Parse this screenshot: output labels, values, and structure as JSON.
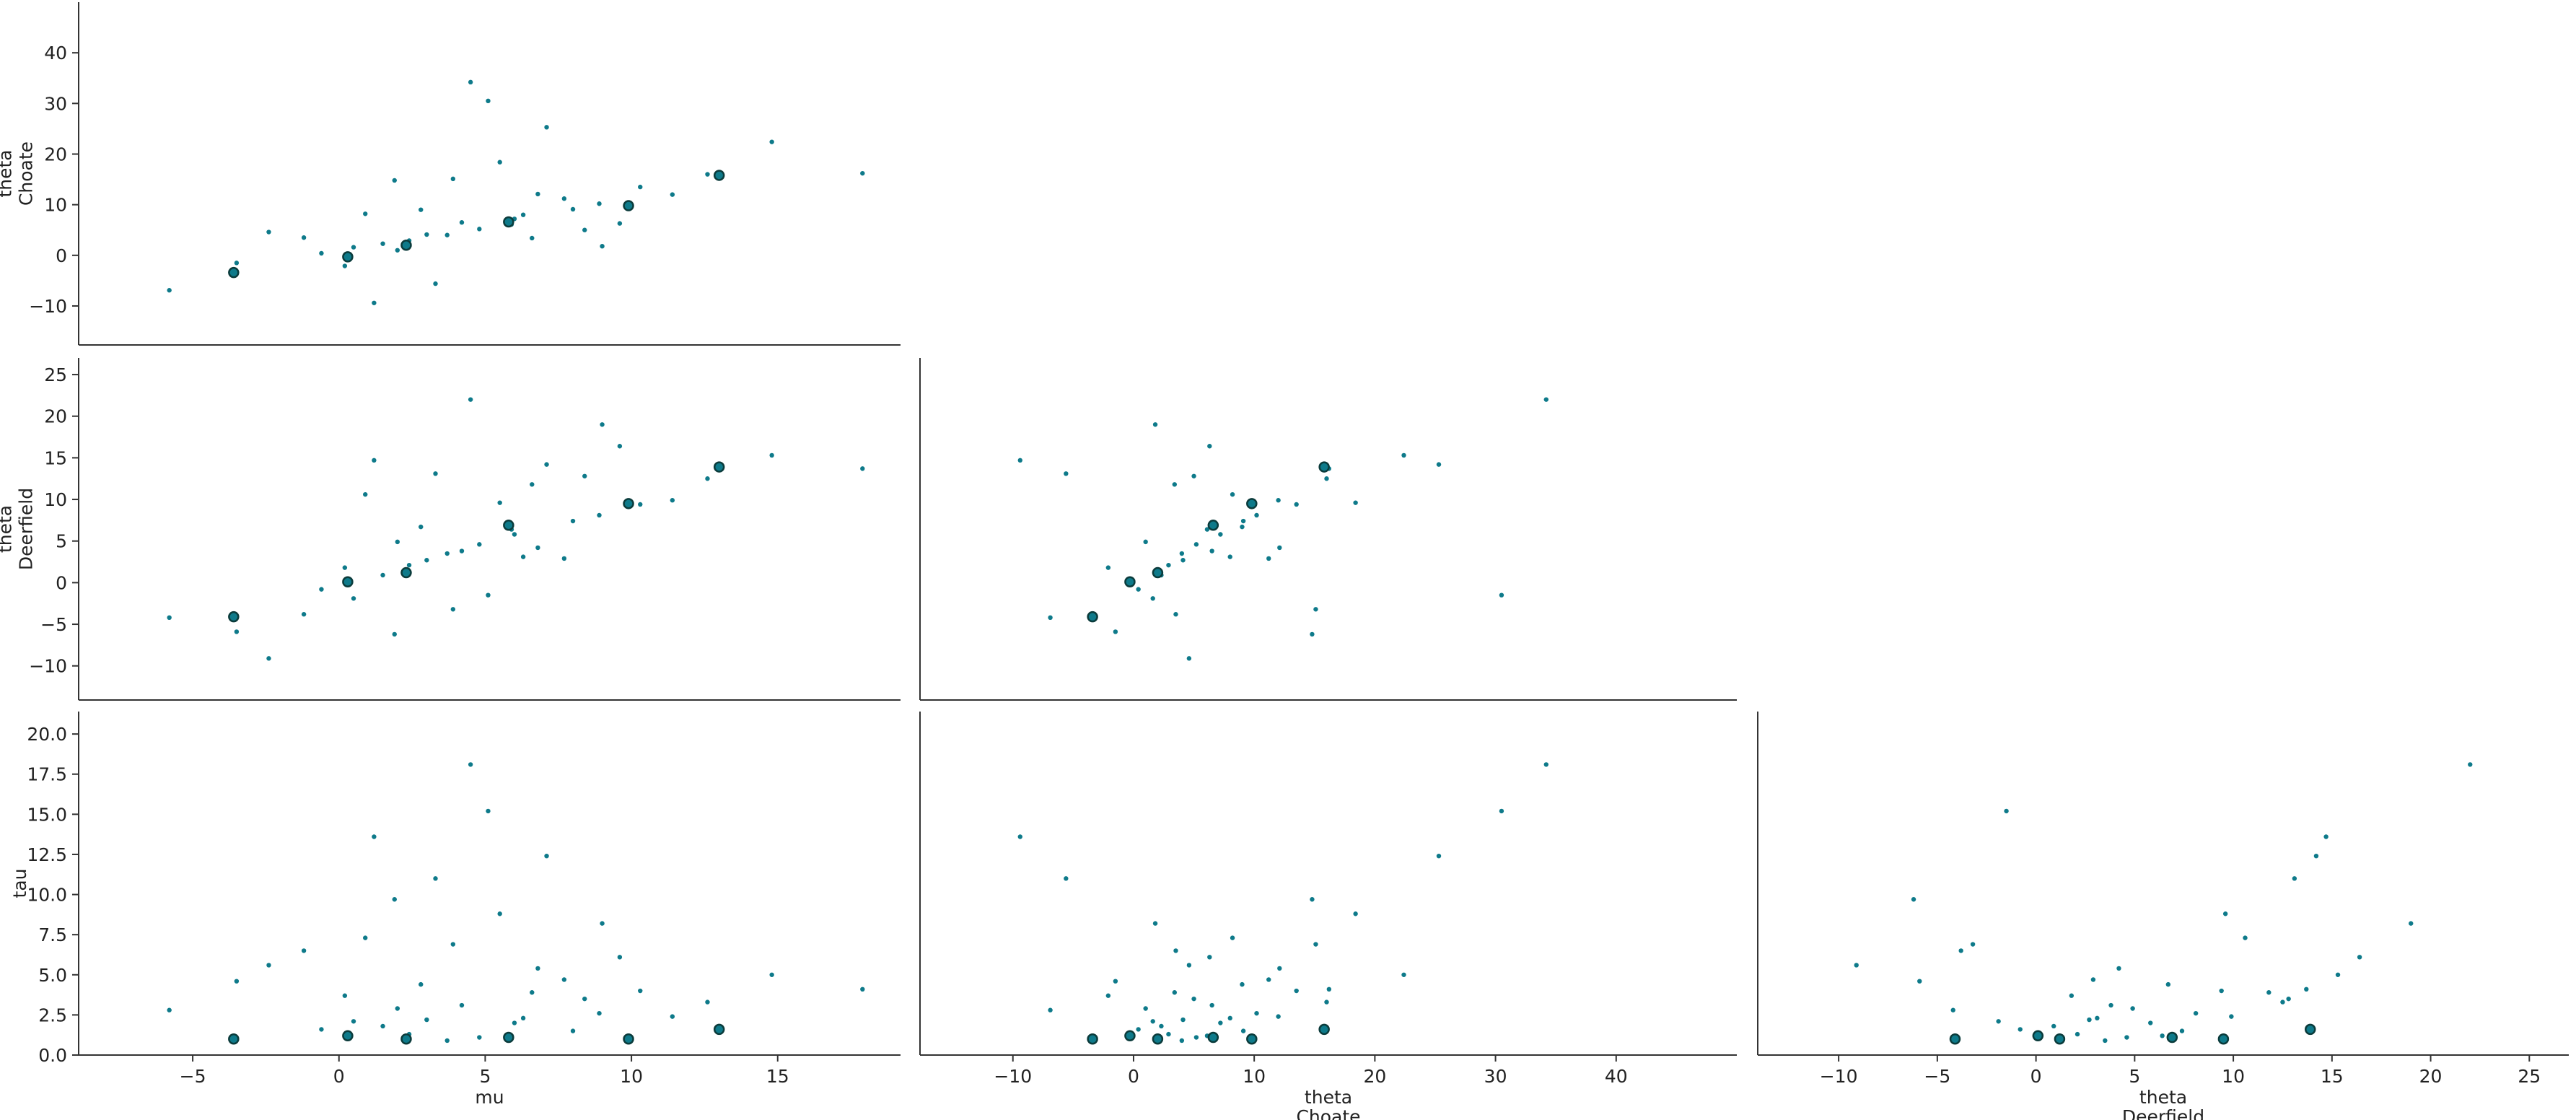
{
  "chart_data": {
    "type": "pair",
    "color": "#0e7a8a",
    "divergence_edge": "#0b3b3b",
    "variables": [
      {
        "label": [
          "mu"
        ],
        "lim": [
          -8.9,
          19.2
        ],
        "ticks": [
          {
            "value": -5,
            "label": "−5"
          },
          0,
          5,
          10,
          15
        ],
        "values": [
          4.2,
          1.5,
          6.8,
          3.0,
          -1.2,
          8.9,
          5.5,
          2.4,
          10.3,
          0.2,
          7.1,
          4.8,
          -3.5,
          12.6,
          6.0,
          1.9,
          3.7,
          9.6,
          -5.8,
          5.1,
          2.8,
          8.0,
          0.9,
          6.6,
          14.8,
          3.3,
          11.4,
          -0.6,
          7.7,
          4.5,
          2.0,
          9.0,
          5.9,
          -2.4,
          1.2,
          6.3,
          17.9,
          3.9,
          8.4,
          0.5
        ],
        "divergent_values": [
          -3.6,
          13.0,
          2.3,
          5.8,
          9.9,
          0.3
        ]
      },
      {
        "label": [
          "theta",
          "Choate"
        ],
        "lim": [
          -17.7,
          50
        ],
        "ticks": [
          {
            "value": -10,
            "label": "−10"
          },
          0,
          10,
          20,
          30,
          40
        ],
        "values": [
          6.5,
          2.3,
          12.1,
          4.1,
          3.5,
          10.2,
          18.4,
          2.9,
          13.5,
          -2.1,
          25.3,
          5.2,
          -1.5,
          16.0,
          7.2,
          14.8,
          4.0,
          6.3,
          -6.9,
          30.5,
          9.0,
          9.1,
          8.2,
          3.4,
          22.4,
          -5.6,
          12.0,
          0.4,
          11.2,
          34.2,
          1.0,
          1.8,
          6.1,
          4.6,
          -9.4,
          8.0,
          16.2,
          15.1,
          5.0,
          1.6
        ],
        "divergent_values": [
          -3.4,
          15.8,
          2.0,
          6.6,
          9.8,
          -0.3
        ]
      },
      {
        "label": [
          "theta",
          "Deerfield"
        ],
        "lim": [
          -14.1,
          27.0
        ],
        "ticks": [
          {
            "value": -10,
            "label": "−10"
          },
          {
            "value": -5,
            "label": "−5"
          },
          0,
          5,
          10,
          15,
          20,
          25
        ],
        "values": [
          3.8,
          0.9,
          4.2,
          2.7,
          -3.8,
          8.1,
          9.6,
          2.1,
          9.4,
          1.8,
          14.2,
          4.6,
          -5.9,
          12.5,
          5.8,
          -6.2,
          3.5,
          16.4,
          -4.2,
          -1.5,
          6.7,
          7.4,
          10.6,
          11.8,
          15.3,
          13.1,
          9.9,
          -0.8,
          2.9,
          22.0,
          4.9,
          19.0,
          6.4,
          -9.1,
          14.7,
          3.1,
          13.7,
          -3.2,
          12.8,
          -1.9
        ],
        "divergent_values": [
          -4.1,
          13.9,
          1.2,
          6.9,
          9.5,
          0.1
        ]
      },
      {
        "label": [
          "tau"
        ],
        "lim": [
          0,
          21.4
        ],
        "ticks": [
          {
            "value": 0,
            "label": "0.0"
          },
          {
            "value": 2.5,
            "label": "2.5"
          },
          {
            "value": 5,
            "label": "5.0"
          },
          {
            "value": 7.5,
            "label": "7.5"
          },
          {
            "value": 10,
            "label": "10.0"
          },
          {
            "value": 12.5,
            "label": "12.5"
          },
          {
            "value": 15,
            "label": "15.0"
          },
          {
            "value": 17.5,
            "label": "17.5"
          },
          {
            "value": 20,
            "label": "20.0"
          }
        ],
        "values": [
          3.1,
          1.8,
          5.4,
          2.2,
          6.5,
          2.6,
          8.8,
          1.3,
          4.0,
          3.7,
          12.4,
          1.1,
          4.6,
          3.3,
          2.0,
          9.7,
          0.9,
          6.1,
          2.8,
          15.2,
          4.4,
          1.5,
          7.3,
          3.9,
          5.0,
          11.0,
          2.4,
          1.6,
          4.7,
          18.1,
          2.9,
          8.2,
          1.2,
          5.6,
          13.6,
          2.3,
          4.1,
          6.9,
          3.5,
          2.1
        ],
        "divergent_values": [
          1.0,
          1.6,
          1.0,
          1.1,
          1.0,
          1.2
        ]
      }
    ]
  }
}
